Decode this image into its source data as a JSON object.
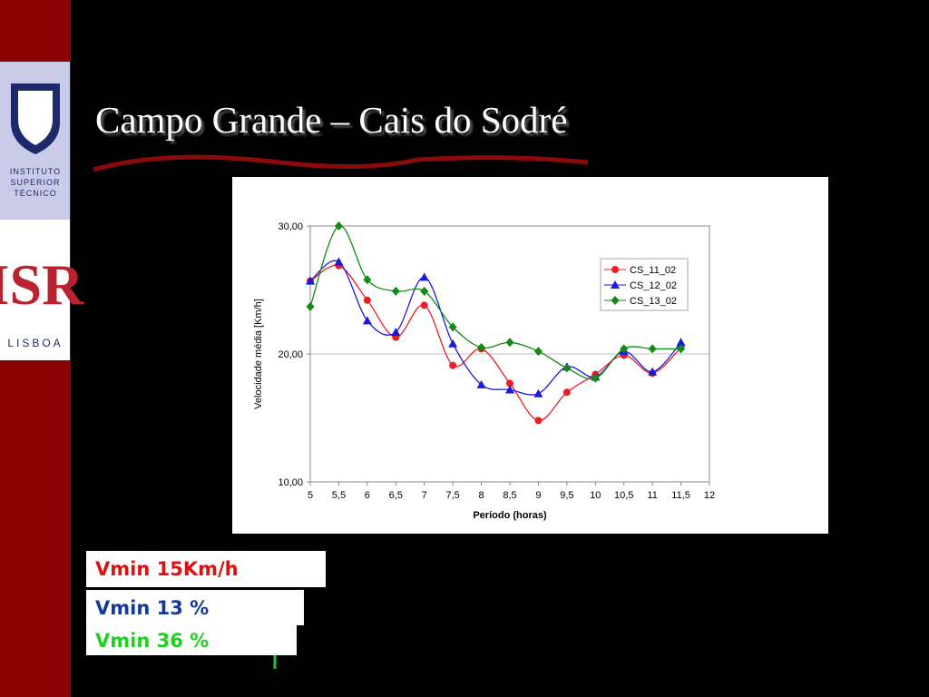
{
  "header": {
    "title": "Campo Grande – Cais do Sodré"
  },
  "logos": {
    "ist": [
      "INSTITUTO",
      "SUPERIOR",
      "TÉCNICO"
    ],
    "isr": "ISR",
    "isr_city": "LISBOA"
  },
  "chart_data": {
    "type": "line",
    "smooth": true,
    "x_label": "Período (horas)",
    "y_label": "Velocidade média [Km/h]",
    "x": [
      5,
      5.5,
      6,
      6.5,
      7,
      7.5,
      8,
      8.5,
      9,
      9.5,
      10,
      10.5,
      11,
      11.5
    ],
    "xlim": [
      5,
      12
    ],
    "xticks": [
      5,
      {
        "value": 5.5,
        "label": "5,5"
      },
      6,
      {
        "value": 6.5,
        "label": "6,5"
      },
      7,
      {
        "value": 7.5,
        "label": "7,5"
      },
      8,
      {
        "value": 8.5,
        "label": "8,5"
      },
      9,
      {
        "value": 9.5,
        "label": "9,5"
      },
      10,
      {
        "value": 10.5,
        "label": "10,5"
      },
      11,
      {
        "value": 11.5,
        "label": "11,5"
      },
      12
    ],
    "ylim": [
      10,
      30
    ],
    "yticks": [
      {
        "value": 10,
        "label": "10,00"
      },
      {
        "value": 20,
        "label": "20,00"
      },
      {
        "value": 30,
        "label": "30,00"
      }
    ],
    "grid": true,
    "legend": "upper right",
    "series": [
      {
        "name": "CS_11_02",
        "color": "#ee1c25",
        "marker": "circle",
        "values": [
          25.7,
          26.9,
          24.2,
          21.3,
          23.8,
          19.1,
          20.4,
          17.7,
          14.8,
          17.0,
          18.4,
          19.9,
          18.5,
          20.5
        ]
      },
      {
        "name": "CS_12_02",
        "color": "#1a1adc",
        "marker": "triangle",
        "values": [
          25.7,
          27.2,
          22.6,
          21.7,
          26.0,
          20.8,
          17.6,
          17.2,
          16.9,
          19.0,
          18.2,
          20.2,
          18.6,
          20.9
        ]
      },
      {
        "name": "CS_13_02",
        "color": "#138a13",
        "marker": "diamond",
        "values": [
          23.7,
          30.0,
          25.8,
          24.9,
          24.9,
          22.1,
          20.5,
          20.9,
          20.2,
          18.9,
          18.1,
          20.4,
          20.4,
          20.4
        ]
      }
    ]
  },
  "notes": [
    "Vmin 15Km/h",
    "Vmin 13 %",
    "Vmin 36 %"
  ]
}
